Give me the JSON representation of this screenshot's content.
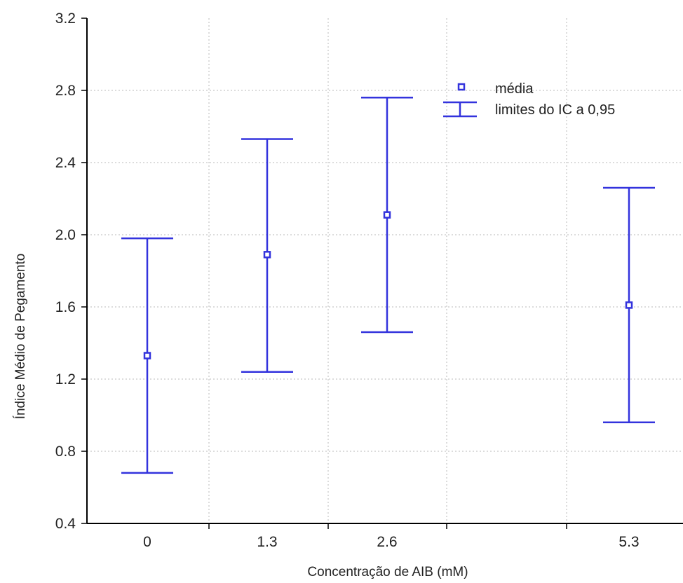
{
  "chart_data": {
    "type": "scatter",
    "xlabel": "Concentração de AIB (mM)",
    "ylabel": "Índice Médio de Pegamento",
    "ylim": [
      0.4,
      3.2
    ],
    "y_ticks": [
      "0.4",
      "0.8",
      "1.2",
      "1.6",
      "2.0",
      "2.4",
      "2.8",
      "3.2"
    ],
    "x_ticks": [
      "0",
      "1.3",
      "2.6",
      "5.3"
    ],
    "grid": true,
    "legend_position": "top-right",
    "legend": [
      {
        "label": "média",
        "marker": "square"
      },
      {
        "label": "limites do IC a 0,95",
        "marker": "errorbar"
      }
    ],
    "points": [
      {
        "x": "0",
        "mean": 1.33,
        "ci_low": 0.68,
        "ci_high": 1.98
      },
      {
        "x": "1.3",
        "mean": 1.89,
        "ci_low": 1.24,
        "ci_high": 2.53
      },
      {
        "x": "2.6",
        "mean": 2.11,
        "ci_low": 1.46,
        "ci_high": 2.76
      },
      {
        "x": "5.3",
        "mean": 1.61,
        "ci_low": 0.96,
        "ci_high": 2.26
      }
    ],
    "color": "#3333dd"
  }
}
